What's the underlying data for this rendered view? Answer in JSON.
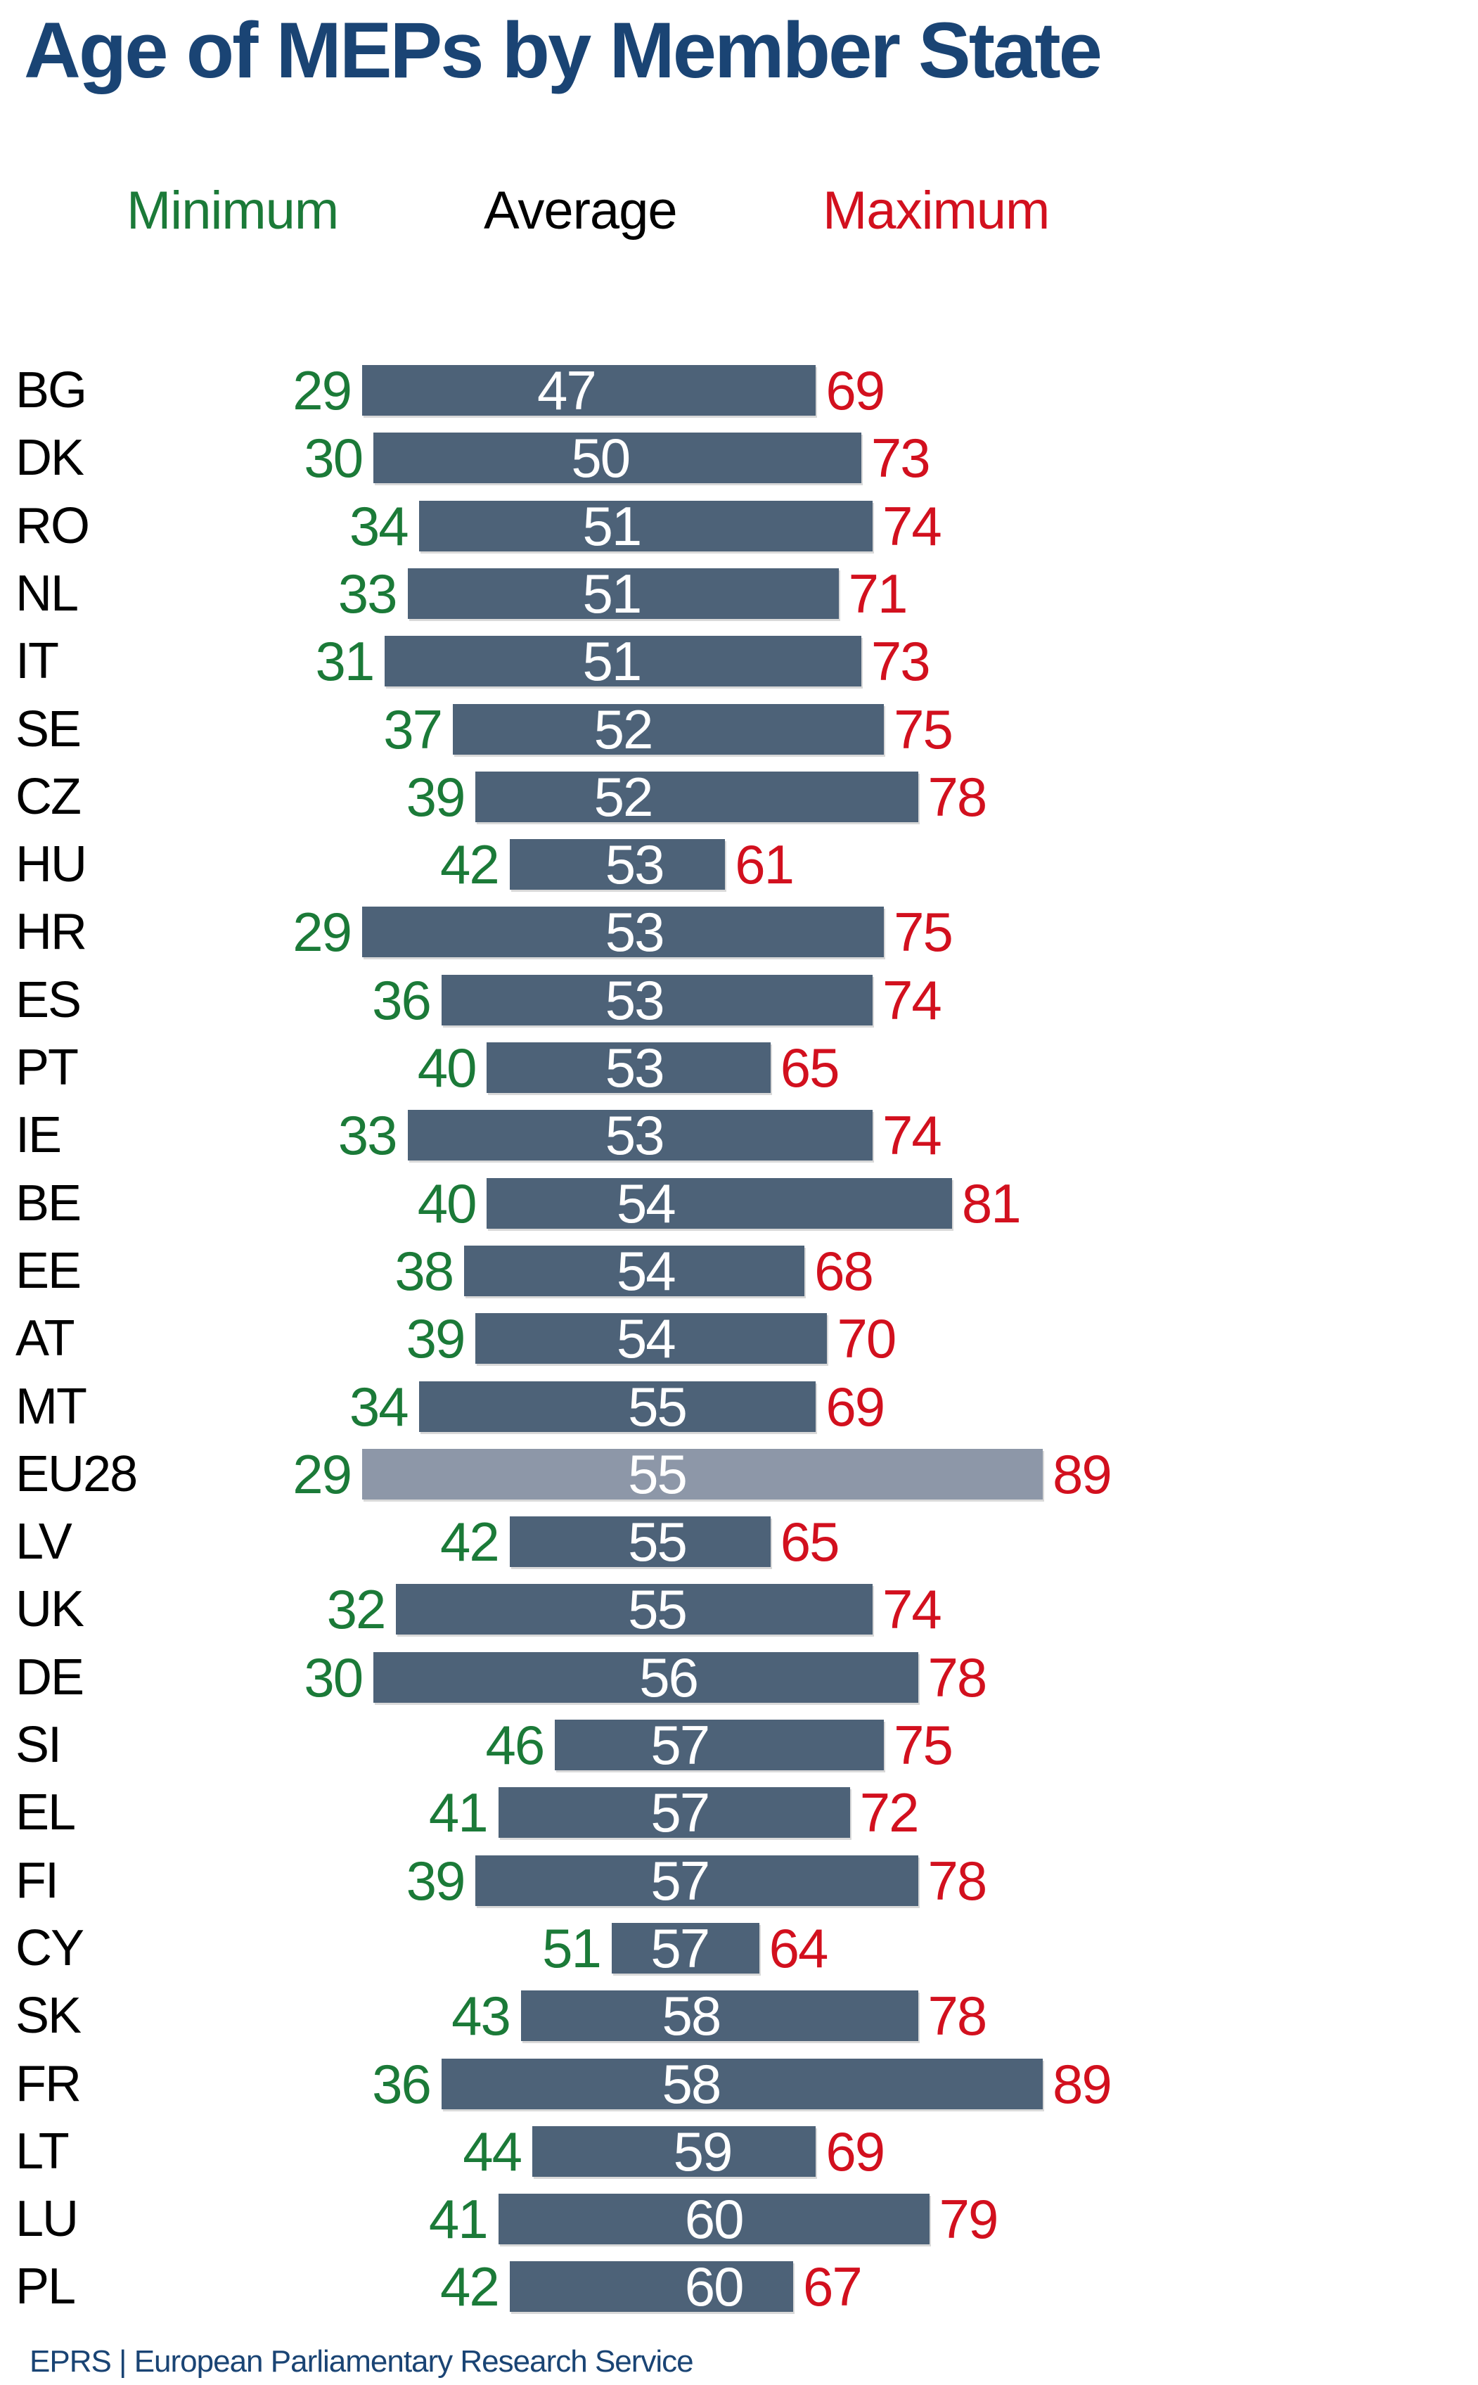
{
  "title": "Age of MEPs by Member State",
  "legend": {
    "minimum": "Minimum",
    "average": "Average",
    "maximum": "Maximum"
  },
  "footer": {
    "text": "EPRS | European Parliamentary Research Service"
  },
  "colors": {
    "title_blue": "#1a4474",
    "footer_blue": "#1a4474",
    "min_green": "#1b7a38",
    "avg_black": "#000000",
    "max_red": "#d2101e",
    "bar_slate": "#4d6278",
    "eu28_bar_gray": "#8d97a8",
    "avg_text_white": "#ffffff"
  },
  "chart_data": {
    "type": "bar",
    "subtype": "horizontal-range-bars",
    "unit": "age in years",
    "title": "Age of MEPs by Member State",
    "xlabel": "",
    "ylabel": "",
    "x_range": [
      29,
      89
    ],
    "grid": false,
    "legend_position": "top",
    "legend_entries": [
      "Minimum",
      "Average",
      "Maximum"
    ],
    "highlight_category": "EU28",
    "categories": [
      "BG",
      "DK",
      "RO",
      "NL",
      "IT",
      "SE",
      "CZ",
      "HU",
      "HR",
      "ES",
      "PT",
      "IE",
      "BE",
      "EE",
      "AT",
      "MT",
      "EU28",
      "LV",
      "UK",
      "DE",
      "SI",
      "EL",
      "FI",
      "CY",
      "SK",
      "FR",
      "LT",
      "LU",
      "PL"
    ],
    "series": [
      {
        "name": "Minimum",
        "values": [
          29,
          30,
          34,
          33,
          31,
          37,
          39,
          42,
          29,
          36,
          40,
          33,
          40,
          38,
          39,
          34,
          29,
          42,
          32,
          30,
          46,
          41,
          39,
          51,
          43,
          36,
          44,
          41,
          42
        ]
      },
      {
        "name": "Average",
        "values": [
          47,
          50,
          51,
          51,
          51,
          52,
          52,
          53,
          53,
          53,
          53,
          53,
          54,
          54,
          54,
          55,
          55,
          55,
          55,
          56,
          57,
          57,
          57,
          57,
          58,
          58,
          59,
          60,
          60
        ]
      },
      {
        "name": "Maximum",
        "values": [
          69,
          73,
          74,
          71,
          73,
          75,
          78,
          61,
          75,
          74,
          65,
          74,
          81,
          68,
          70,
          69,
          89,
          65,
          74,
          78,
          75,
          72,
          78,
          64,
          78,
          89,
          69,
          79,
          67
        ]
      }
    ]
  }
}
